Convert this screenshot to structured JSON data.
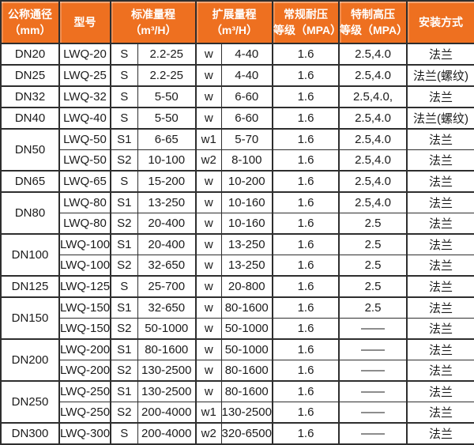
{
  "table": {
    "header": [
      {
        "label": "公称通径\n（mm）",
        "colspan": 1
      },
      {
        "label": "型号",
        "colspan": 1
      },
      {
        "label": "标准量程\n（m³/H）",
        "colspan": 2
      },
      {
        "label": "扩展量程\n（m³/H）",
        "colspan": 2
      },
      {
        "label": "常规耐压\n等级（MPA）",
        "colspan": 1
      },
      {
        "label": "特制高压\n等级（MPA）",
        "colspan": 1
      },
      {
        "label": "安装方式",
        "colspan": 1
      }
    ],
    "colors": {
      "header_bg": "#ee7020",
      "header_text": "#ffffff",
      "border": "#2e2e2e",
      "body_text": "#1b1b1b"
    },
    "rows": [
      {
        "dn": "DN20",
        "dn_span": 1,
        "model": "LWQ-20",
        "std_code": "S",
        "std_range": "2.2-25",
        "ext_code": "w",
        "ext_range": "4-40",
        "pressure": "1.6",
        "high_pressure": "2.5,4.0",
        "install": "法兰"
      },
      {
        "dn": "DN25",
        "dn_span": 1,
        "model": "LWQ-25",
        "std_code": "S",
        "std_range": "2.2-25",
        "ext_code": "w",
        "ext_range": "4-40",
        "pressure": "1.6",
        "high_pressure": "2.5,4.0",
        "install": "法兰(螺纹)"
      },
      {
        "dn": "DN32",
        "dn_span": 1,
        "model": "LWQ-32",
        "std_code": "S",
        "std_range": "5-50",
        "ext_code": "w",
        "ext_range": "6-60",
        "pressure": "1.6",
        "high_pressure": "2.5,4.0,",
        "install": "法兰"
      },
      {
        "dn": "DN40",
        "dn_span": 1,
        "model": "LWQ-40",
        "std_code": "S",
        "std_range": "5-50",
        "ext_code": "w",
        "ext_range": "6-60",
        "pressure": "1.6",
        "high_pressure": "2.5,4.0",
        "install": "法兰(螺纹)"
      },
      {
        "dn": "DN50",
        "dn_span": 2,
        "model": "LWQ-50",
        "std_code": "S1",
        "std_range": "6-65",
        "ext_code": "w1",
        "ext_range": "5-70",
        "pressure": "1.6",
        "high_pressure": "2.5,4.0",
        "install": "法兰"
      },
      {
        "dn": null,
        "model": "LWQ-50",
        "std_code": "S2",
        "std_range": "10-100",
        "ext_code": "w2",
        "ext_range": "8-100",
        "pressure": "1.6",
        "high_pressure": "2.5,4.0",
        "install": "法兰"
      },
      {
        "dn": "DN65",
        "dn_span": 1,
        "model": "LWQ-65",
        "std_code": "S",
        "std_range": "15-200",
        "ext_code": "w",
        "ext_range": "10-200",
        "pressure": "1.6",
        "high_pressure": "2.5,4.0",
        "install": "法兰"
      },
      {
        "dn": "DN80",
        "dn_span": 2,
        "model": "LWQ-80",
        "std_code": "S1",
        "std_range": "13-250",
        "ext_code": "w",
        "ext_range": "10-160",
        "pressure": "1.6",
        "high_pressure": "2.5,4.0",
        "install": "法兰"
      },
      {
        "dn": null,
        "model": "LWQ-80",
        "std_code": "S2",
        "std_range": "20-400",
        "ext_code": "w",
        "ext_range": "10-160",
        "pressure": "1.6",
        "high_pressure": "2.5",
        "install": "法兰"
      },
      {
        "dn": "DN100",
        "dn_span": 2,
        "model": "LWQ-100",
        "std_code": "S1",
        "std_range": "20-400",
        "ext_code": "w",
        "ext_range": "13-250",
        "pressure": "1.6",
        "high_pressure": "2.5",
        "install": "法兰"
      },
      {
        "dn": null,
        "model": "LWQ-100",
        "std_code": "S2",
        "std_range": "32-650",
        "ext_code": "w",
        "ext_range": "13-250",
        "pressure": "1.6",
        "high_pressure": "2.5",
        "install": "法兰"
      },
      {
        "dn": "DN125",
        "dn_span": 1,
        "model": "LWQ-125",
        "std_code": "S",
        "std_range": "25-700",
        "ext_code": "w",
        "ext_range": "20-800",
        "pressure": "1.6",
        "high_pressure": "2.5",
        "install": "法兰"
      },
      {
        "dn": "DN150",
        "dn_span": 2,
        "model": "LWQ-150",
        "std_code": "S1",
        "std_range": "32-650",
        "ext_code": "w",
        "ext_range": "80-1600",
        "pressure": "1.6",
        "high_pressure": "2.5",
        "install": "法兰"
      },
      {
        "dn": null,
        "model": "LWQ-150",
        "std_code": "S2",
        "std_range": "50-1000",
        "ext_code": "w",
        "ext_range": "50-1000",
        "pressure": "1.6",
        "high_pressure": "——",
        "install": "法兰"
      },
      {
        "dn": "DN200",
        "dn_span": 2,
        "model": "LWQ-200",
        "std_code": "S1",
        "std_range": "80-1600",
        "ext_code": "w",
        "ext_range": "50-1000",
        "pressure": "1.6",
        "high_pressure": "——",
        "install": "法兰"
      },
      {
        "dn": null,
        "model": "LWQ-200",
        "std_code": "S2",
        "std_range": "130-2500",
        "ext_code": "w",
        "ext_range": "80-1600",
        "pressure": "1.6",
        "high_pressure": "——",
        "install": "法兰"
      },
      {
        "dn": "DN250",
        "dn_span": 2,
        "model": "LWQ-250",
        "std_code": "S1",
        "std_range": "130-2500",
        "ext_code": "w",
        "ext_range": "80-1600",
        "pressure": "1.6",
        "high_pressure": "——",
        "install": "法兰"
      },
      {
        "dn": null,
        "model": "LWQ-250",
        "std_code": "S2",
        "std_range": "200-4000",
        "ext_code": "w1",
        "ext_range": "130-2500",
        "pressure": "1.6",
        "high_pressure": "——",
        "install": "法兰"
      },
      {
        "dn": "DN300",
        "dn_span": 1,
        "model": "LWQ-300",
        "std_code": "S",
        "std_range": "200-4000",
        "ext_code": "w2",
        "ext_range": "320-6500",
        "pressure": "1.6",
        "high_pressure": "——",
        "install": "法兰"
      }
    ]
  }
}
